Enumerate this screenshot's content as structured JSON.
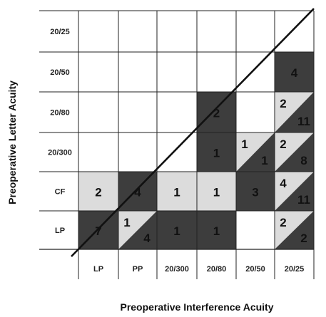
{
  "chart_data": {
    "type": "heatmap",
    "xlabel": "Preoperative Interference Acuity",
    "ylabel": "Preoperative Letter Acuity",
    "x_categories": [
      "LP",
      "PP",
      "20/300",
      "20/80",
      "20/50",
      "20/25"
    ],
    "y_categories_top_to_bottom": [
      "20/25",
      "20/50",
      "20/80",
      "20/300",
      "CF",
      "LP"
    ],
    "diagonal_line": true,
    "colors": {
      "dark": "#3d3d3d",
      "light": "#dcdcdc",
      "white": "#ffffff",
      "grid": "#222222",
      "diag": "#111111"
    },
    "cells": [
      {
        "x": "20/25",
        "y": "20/50",
        "fill": "dark",
        "labels": [
          "4"
        ]
      },
      {
        "x": "20/80",
        "y": "20/80",
        "fill": "dark",
        "labels": [
          "2"
        ]
      },
      {
        "x": "20/25",
        "y": "20/80",
        "fill": "diag-split",
        "labels": [
          "2",
          "11"
        ]
      },
      {
        "x": "20/80",
        "y": "20/300",
        "fill": "dark",
        "labels": [
          "1"
        ]
      },
      {
        "x": "20/50",
        "y": "20/300",
        "fill": "diag-split",
        "labels": [
          "1",
          "1"
        ]
      },
      {
        "x": "20/25",
        "y": "20/300",
        "fill": "diag-split",
        "labels": [
          "2",
          "8"
        ]
      },
      {
        "x": "LP",
        "y": "CF",
        "fill": "light",
        "labels": [
          "2"
        ]
      },
      {
        "x": "PP",
        "y": "CF",
        "fill": "dark",
        "labels": [
          "4"
        ]
      },
      {
        "x": "20/300",
        "y": "CF",
        "fill": "light",
        "labels": [
          "1"
        ]
      },
      {
        "x": "20/80",
        "y": "CF",
        "fill": "light",
        "labels": [
          "1"
        ]
      },
      {
        "x": "20/50",
        "y": "CF",
        "fill": "dark",
        "labels": [
          "3"
        ]
      },
      {
        "x": "20/25",
        "y": "CF",
        "fill": "diag-split",
        "labels": [
          "4",
          "11"
        ]
      },
      {
        "x": "LP",
        "y": "LP",
        "fill": "dark",
        "labels": [
          "7"
        ]
      },
      {
        "x": "PP",
        "y": "LP",
        "fill": "diag-split",
        "labels": [
          "1",
          "4"
        ]
      },
      {
        "x": "20/300",
        "y": "LP",
        "fill": "dark",
        "labels": [
          "1"
        ]
      },
      {
        "x": "20/80",
        "y": "LP",
        "fill": "dark",
        "labels": [
          "1"
        ]
      },
      {
        "x": "20/25",
        "y": "LP",
        "fill": "diag-split",
        "labels": [
          "2",
          "2"
        ]
      }
    ]
  }
}
